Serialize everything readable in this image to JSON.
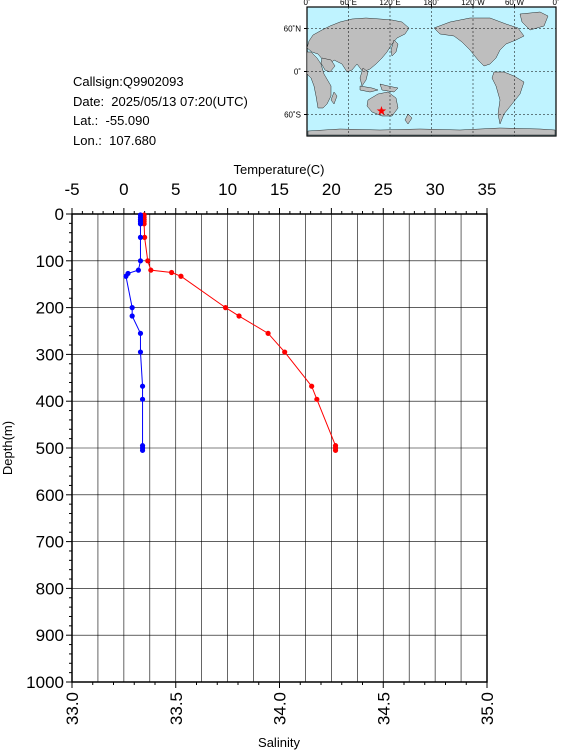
{
  "info": {
    "callsign": "Callsign:Q9902093",
    "date": "Date:  2025/05/13 07:20(UTC)",
    "lat": "Lat.:  -55.090",
    "lon": "Lon.:  107.680"
  },
  "map": {
    "lon_labels": [
      "0˚",
      "60˚E",
      "120˚E",
      "180˚",
      "120˚W",
      "60˚W",
      "0˚"
    ],
    "lat_labels": [
      "60˚N",
      "0˚",
      "60˚S"
    ],
    "marker": {
      "lon": 107.68,
      "lat": -55.09
    },
    "colors": {
      "ocean": "#bff3ff",
      "land": "#bebebe",
      "marker": "#ff0000"
    }
  },
  "chart_data": {
    "type": "line",
    "temperature_axis": {
      "label": "Temperature(C)",
      "range": [
        -5,
        35
      ],
      "ticks": [
        "-5",
        "0",
        "5",
        "10",
        "15",
        "20",
        "25",
        "30",
        "35"
      ]
    },
    "salinity_axis": {
      "label": "Salinity",
      "range": [
        33.0,
        35.0
      ],
      "ticks": [
        "33.0",
        "33.5",
        "34.0",
        "34.5",
        "35.0"
      ]
    },
    "depth_axis": {
      "label": "Depth(m)",
      "range": [
        0,
        1000
      ],
      "ticks": [
        "0",
        "100",
        "200",
        "300",
        "400",
        "500",
        "600",
        "700",
        "800",
        "900",
        "1000"
      ]
    },
    "grid": true,
    "series": [
      {
        "kind": "temperature",
        "color": "#ff0000",
        "points": [
          [
            1.95,
            2
          ],
          [
            1.95,
            7
          ],
          [
            1.95,
            12
          ],
          [
            1.95,
            16
          ],
          [
            1.95,
            21
          ],
          [
            2.0,
            50
          ],
          [
            2.3,
            100
          ],
          [
            2.6,
            120
          ],
          [
            4.6,
            125
          ],
          [
            5.5,
            133
          ],
          [
            9.8,
            200
          ],
          [
            11.1,
            218
          ],
          [
            13.9,
            255
          ],
          [
            15.5,
            295
          ],
          [
            18.1,
            368
          ],
          [
            18.6,
            396
          ],
          [
            20.4,
            495
          ],
          [
            20.4,
            500
          ],
          [
            20.4,
            505
          ]
        ]
      },
      {
        "kind": "salinity",
        "color": "#0000ff",
        "points": [
          [
            33.33,
            2
          ],
          [
            33.33,
            7
          ],
          [
            33.33,
            12
          ],
          [
            33.33,
            16
          ],
          [
            33.33,
            21
          ],
          [
            33.33,
            50
          ],
          [
            33.33,
            100
          ],
          [
            33.32,
            120
          ],
          [
            33.27,
            127
          ],
          [
            33.26,
            133
          ],
          [
            33.29,
            200
          ],
          [
            33.29,
            218
          ],
          [
            33.33,
            255
          ],
          [
            33.33,
            295
          ],
          [
            33.34,
            368
          ],
          [
            33.34,
            396
          ],
          [
            33.34,
            495
          ],
          [
            33.34,
            500
          ],
          [
            33.34,
            505
          ]
        ]
      }
    ]
  }
}
